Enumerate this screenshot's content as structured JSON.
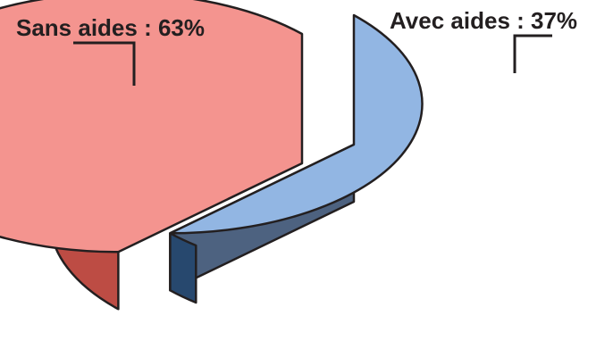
{
  "chart_data": {
    "type": "pie",
    "style": "3d-exploded",
    "slices": [
      {
        "label": "Sans aides : 63%",
        "value": 63,
        "top_color": "#f4948f",
        "side_color": "#bd4c44"
      },
      {
        "label": "Avec aides : 37%",
        "value": 37,
        "top_color": "#92b6e3",
        "side_color": "#4d6280",
        "side_dark_color": "#27486e"
      }
    ]
  }
}
